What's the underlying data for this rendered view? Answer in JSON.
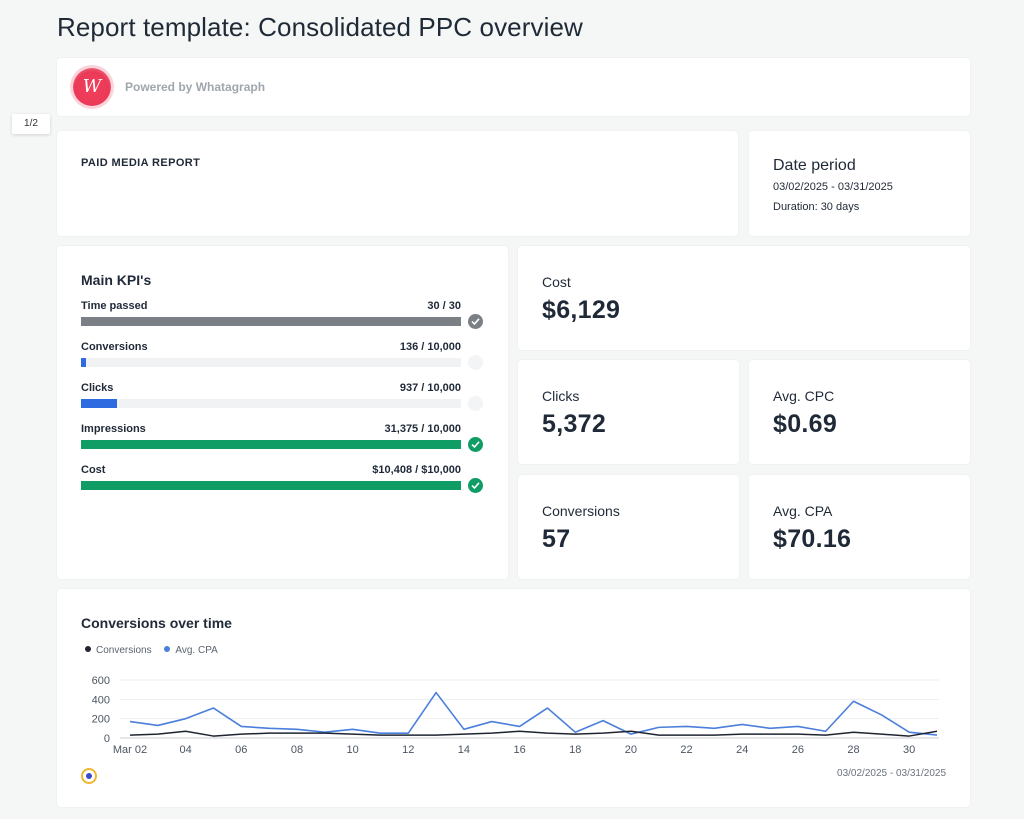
{
  "title": "Report template: Consolidated PPC overview",
  "brand": {
    "powered_by": "Powered by Whatagraph",
    "logo_icon": "whatagraph-logo"
  },
  "page_indicator": "1/2",
  "report": {
    "label": "PAID MEDIA REPORT"
  },
  "date_period": {
    "heading": "Date period",
    "range": "03/02/2025 - 03/31/2025",
    "duration": "Duration:  30 days"
  },
  "kpis": {
    "heading": "Main KPI's",
    "items": [
      {
        "name": "Time passed",
        "value": "30 / 30",
        "progress": 1.0,
        "color": "#7b7f86",
        "check": "done-grey"
      },
      {
        "name": "Conversions",
        "value": "136 / 10,000",
        "progress": 0.0136,
        "color": "#2f6be0",
        "check": "none"
      },
      {
        "name": "Clicks",
        "value": "937 / 10,000",
        "progress": 0.0937,
        "color": "#2f6be0",
        "check": "none"
      },
      {
        "name": "Impressions",
        "value": "31,375 / 10,000",
        "progress": 1.0,
        "color": "#0f9d65",
        "check": "done-green"
      },
      {
        "name": "Cost",
        "value": "$10,408 / $10,000",
        "progress": 1.0,
        "color": "#0f9d65",
        "check": "done-green"
      }
    ]
  },
  "metrics": {
    "cost": {
      "label": "Cost",
      "value": "$6,129"
    },
    "clicks": {
      "label": "Clicks",
      "value": "5,372"
    },
    "cpc": {
      "label": "Avg. CPC",
      "value": "$0.69"
    },
    "conversions": {
      "label": "Conversions",
      "value": "57"
    },
    "cpa": {
      "label": "Avg. CPA",
      "value": "$70.16"
    }
  },
  "chart": {
    "title": "Conversions over time",
    "range": "03/02/2025 - 03/31/2025"
  },
  "chart_data": {
    "type": "line",
    "x": [
      "Mar 02",
      "03",
      "04",
      "05",
      "06",
      "07",
      "08",
      "09",
      "10",
      "11",
      "12",
      "13",
      "14",
      "15",
      "16",
      "17",
      "18",
      "19",
      "20",
      "21",
      "22",
      "23",
      "24",
      "25",
      "26",
      "27",
      "28",
      "29",
      "30",
      "31"
    ],
    "xticks": [
      "Mar 02",
      "04",
      "06",
      "08",
      "10",
      "12",
      "14",
      "16",
      "18",
      "20",
      "22",
      "24",
      "26",
      "28",
      "30"
    ],
    "yticks": [
      0,
      200,
      400,
      600
    ],
    "ylim": [
      0,
      600
    ],
    "series": [
      {
        "name": "Conversions",
        "color": "#1f2430",
        "values": [
          30,
          40,
          70,
          20,
          40,
          50,
          50,
          50,
          40,
          30,
          30,
          30,
          40,
          50,
          70,
          50,
          40,
          50,
          70,
          30,
          30,
          30,
          40,
          40,
          40,
          30,
          60,
          40,
          20,
          70
        ]
      },
      {
        "name": "Avg. CPA",
        "color": "#4b7fdc",
        "values": [
          170,
          130,
          200,
          310,
          120,
          100,
          90,
          60,
          90,
          50,
          50,
          470,
          90,
          170,
          120,
          310,
          60,
          180,
          40,
          110,
          120,
          100,
          140,
          100,
          120,
          70,
          380,
          240,
          60,
          30
        ]
      }
    ]
  }
}
